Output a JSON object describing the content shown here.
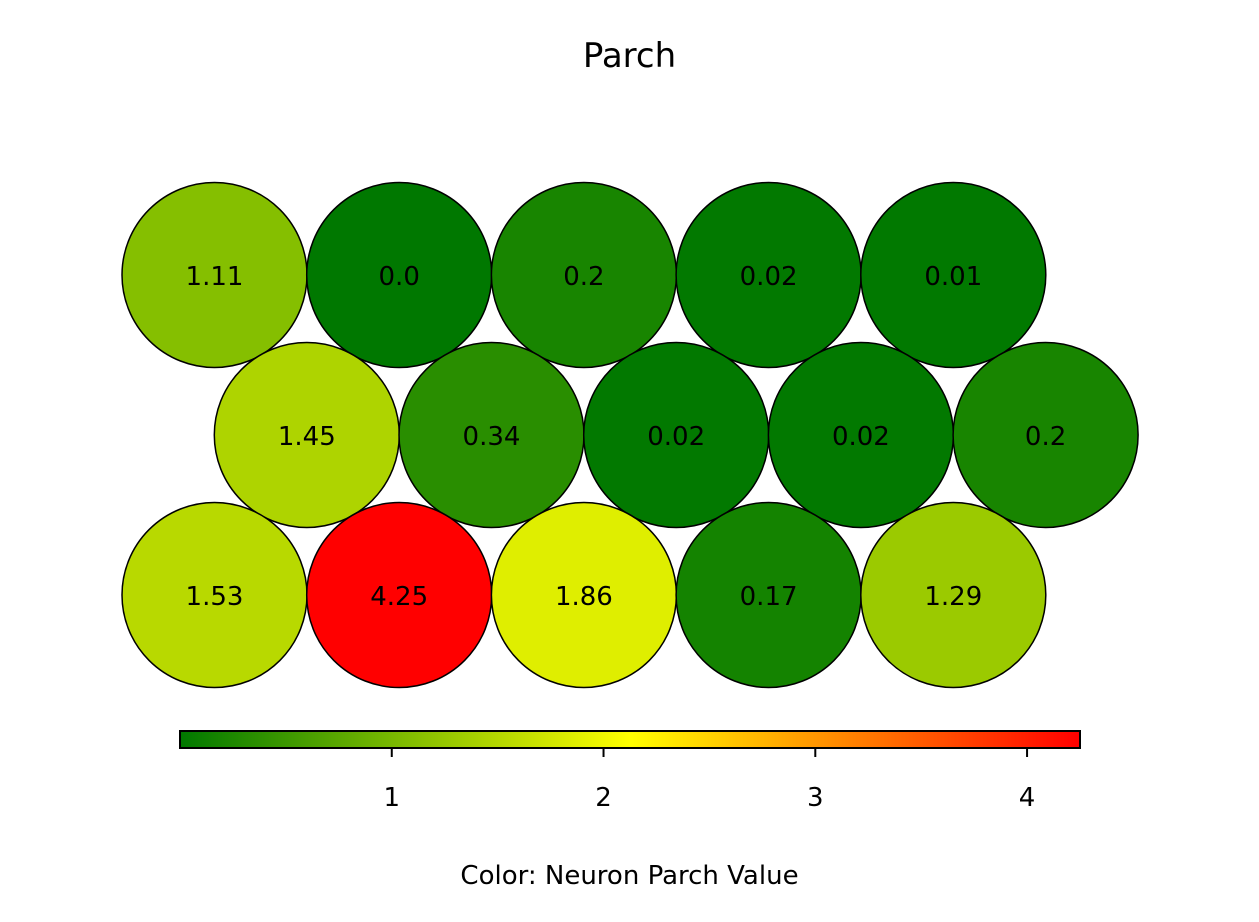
{
  "chart_data": {
    "type": "heatmap",
    "title": "Parch",
    "colorbar": {
      "label": "Color: Neuron Parch Value",
      "range": [
        0,
        4.25
      ],
      "ticks": [
        1,
        2,
        3,
        4
      ],
      "tick_labels": [
        "1",
        "2",
        "3",
        "4"
      ],
      "colors": [
        "#007800",
        "#ffff00",
        "#ff0000"
      ],
      "placement": "bottom"
    },
    "grid": {
      "layout": "hexagonal",
      "rows": [
        [
          1.11,
          0.0,
          0.2,
          0.02,
          0.01
        ],
        [
          1.45,
          0.34,
          0.02,
          0.02,
          0.2
        ],
        [
          1.53,
          4.25,
          1.86,
          0.17,
          1.29
        ]
      ],
      "row_labels": [
        [
          "1.11",
          "0.0",
          "0.2",
          "0.02",
          "0.01"
        ],
        [
          "1.45",
          "0.34",
          "0.02",
          "0.02",
          "0.2"
        ],
        [
          "1.53",
          "4.25",
          "1.86",
          "0.17",
          "1.29"
        ]
      ]
    }
  }
}
